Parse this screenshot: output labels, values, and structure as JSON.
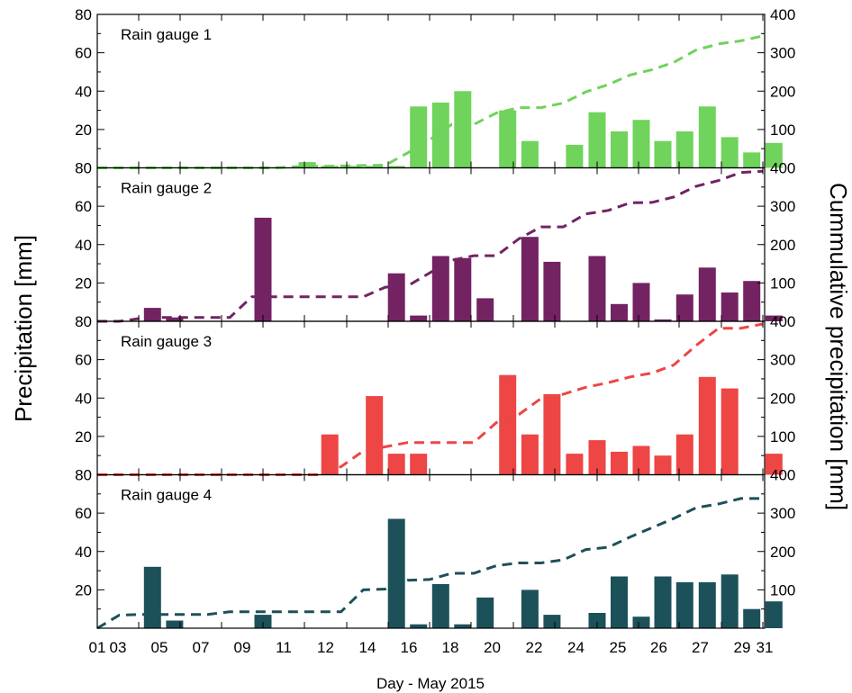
{
  "chart_data": {
    "type": "bar",
    "xlabel": "Day - May 2015",
    "ylabel_left": "Precipitation [mm]",
    "ylabel_right": "Cummulative precipitation [mm]",
    "x_ticks": [
      "01",
      "03",
      "05",
      "07",
      "09",
      "11",
      "12",
      "14",
      "16",
      "18",
      "20",
      "22",
      "24",
      "25",
      "26",
      "27",
      "29",
      "31"
    ],
    "y_ticks_left": [
      "20",
      "40",
      "60",
      "80"
    ],
    "y_ticks_right": [
      "100",
      "200",
      "300",
      "400"
    ],
    "ylim_left": [
      0,
      80
    ],
    "ylim_right": [
      0,
      400
    ],
    "xlim": [
      1,
      31
    ],
    "panels": [
      {
        "label": "Rain gauge 1",
        "color": "#6fd35c",
        "daily_precipitation": [
          0,
          0,
          0,
          0,
          0,
          0,
          0,
          0,
          3,
          1,
          1,
          1,
          1,
          32,
          34,
          40,
          0,
          30,
          14,
          0,
          12,
          29,
          19,
          25,
          14,
          19,
          32,
          16,
          8,
          13
        ],
        "cumulative_x": [
          1,
          2,
          3,
          4,
          5,
          6,
          7,
          8,
          9,
          10,
          11,
          12,
          13,
          14,
          15,
          16,
          17,
          18,
          19,
          20,
          21,
          22,
          23,
          24,
          25,
          26,
          27,
          28,
          29,
          30,
          31
        ],
        "cumulative_y": [
          0,
          0,
          0,
          0,
          0,
          0,
          0,
          0,
          0,
          3,
          4,
          5,
          6,
          7,
          39,
          73,
          113,
          113,
          143,
          157,
          157,
          169,
          198,
          217,
          242,
          256,
          275,
          307,
          323,
          331,
          344
        ]
      },
      {
        "label": "Rain gauge 2",
        "color": "#732362",
        "daily_precipitation": [
          0,
          7,
          2,
          0,
          0,
          0,
          54,
          0,
          0,
          0,
          0,
          0,
          25,
          3,
          34,
          33,
          12,
          0,
          44,
          31,
          0,
          34,
          9,
          20,
          1,
          14,
          28,
          15,
          21,
          3
        ],
        "cumulative_x": [
          1,
          2,
          3,
          4,
          5,
          6,
          7,
          8,
          9,
          10,
          11,
          12,
          13,
          14,
          15,
          16,
          17,
          18,
          19,
          20,
          21,
          22,
          23,
          24,
          25,
          26,
          27,
          28,
          29,
          30,
          31
        ],
        "cumulative_y": [
          0,
          0,
          8,
          10,
          10,
          10,
          10,
          64,
          64,
          64,
          64,
          64,
          64,
          89,
          92,
          126,
          159,
          171,
          171,
          215,
          246,
          246,
          280,
          289,
          309,
          310,
          324,
          352,
          367,
          388,
          391
        ]
      },
      {
        "label": "Rain gauge 3",
        "color": "#ee4545",
        "daily_precipitation": [
          0,
          0,
          0,
          0,
          0,
          0,
          0,
          0,
          0,
          21,
          0,
          41,
          11,
          11,
          0,
          0,
          0,
          52,
          21,
          42,
          11,
          18,
          12,
          15,
          10,
          21,
          51,
          45,
          0,
          11
        ],
        "cumulative_x": [
          1,
          2,
          3,
          4,
          5,
          6,
          7,
          8,
          9,
          10,
          11,
          12,
          13,
          14,
          15,
          16,
          17,
          18,
          19,
          20,
          21,
          22,
          23,
          24,
          25,
          26,
          27,
          28,
          29,
          30,
          31
        ],
        "cumulative_y": [
          0,
          0,
          0,
          0,
          0,
          0,
          0,
          0,
          0,
          0,
          0,
          21,
          62,
          73,
          84,
          84,
          84,
          84,
          136,
          157,
          199,
          210,
          228,
          240,
          255,
          265,
          286,
          337,
          382,
          382,
          393
        ]
      },
      {
        "label": "Rain gauge 4",
        "color": "#1c5159",
        "daily_precipitation": [
          0,
          32,
          4,
          0,
          0,
          0,
          7,
          0,
          0,
          0,
          0,
          0,
          57,
          2,
          23,
          2,
          16,
          0,
          20,
          7,
          0,
          8,
          27,
          6,
          27,
          24,
          24,
          28,
          10,
          14
        ],
        "cumulative_x": [
          1,
          2,
          3,
          4,
          5,
          6,
          7,
          8,
          9,
          10,
          11,
          12,
          13,
          14,
          15,
          16,
          17,
          18,
          19,
          20,
          21,
          22,
          23,
          24,
          25,
          26,
          27,
          28,
          29,
          30,
          31
        ],
        "cumulative_y": [
          0,
          34,
          36,
          36,
          36,
          36,
          43,
          43,
          43,
          43,
          43,
          43,
          100,
          102,
          125,
          127,
          143,
          143,
          163,
          170,
          170,
          178,
          205,
          211,
          238,
          262,
          286,
          314,
          324,
          338,
          338
        ]
      }
    ]
  }
}
